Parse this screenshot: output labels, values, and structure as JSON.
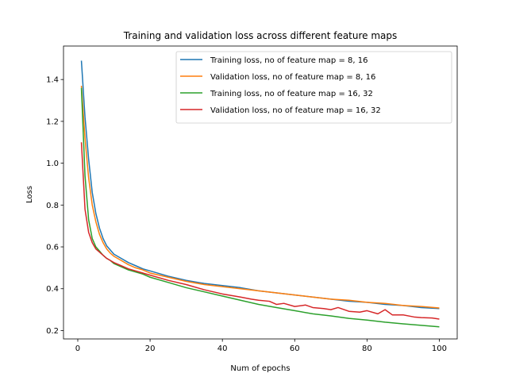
{
  "chart_data": {
    "type": "line",
    "title": "Training and validation loss across different feature maps",
    "xlabel": "Num of epochs",
    "ylabel": "Loss",
    "xlim": [
      -3.95,
      104.95
    ],
    "ylim": [
      0.16,
      1.56
    ],
    "xticks": [
      0,
      20,
      40,
      60,
      80,
      100
    ],
    "yticks": [
      0.2,
      0.4,
      0.6,
      0.8,
      1.0,
      1.2,
      1.4
    ],
    "ytick_labels": [
      "0.2",
      "0.4",
      "0.6",
      "0.8",
      "1.0",
      "1.2",
      "1.4"
    ],
    "grid": false,
    "legend_position": "top-right",
    "series": [
      {
        "name": "Training loss, no of feature map = 8, 16",
        "color": "#1f77b4",
        "x": [
          1,
          2,
          3,
          4,
          5,
          6,
          7,
          8,
          9,
          10,
          12,
          14,
          16,
          18,
          20,
          25,
          30,
          35,
          40,
          45,
          50,
          55,
          60,
          65,
          70,
          75,
          80,
          85,
          90,
          95,
          100
        ],
        "y": [
          1.49,
          1.22,
          1.02,
          0.86,
          0.76,
          0.69,
          0.64,
          0.605,
          0.585,
          0.565,
          0.545,
          0.525,
          0.51,
          0.495,
          0.485,
          0.46,
          0.44,
          0.425,
          0.415,
          0.405,
          0.39,
          0.38,
          0.37,
          0.36,
          0.35,
          0.34,
          0.335,
          0.325,
          0.32,
          0.31,
          0.305
        ]
      },
      {
        "name": "Validation loss, no of feature map = 8, 16",
        "color": "#ff7f0e",
        "x": [
          1,
          2,
          3,
          4,
          5,
          6,
          7,
          8,
          9,
          10,
          12,
          14,
          16,
          18,
          20,
          25,
          30,
          35,
          40,
          45,
          50,
          55,
          60,
          65,
          70,
          75,
          80,
          85,
          90,
          95,
          100
        ],
        "y": [
          1.37,
          1.12,
          0.93,
          0.8,
          0.72,
          0.66,
          0.62,
          0.59,
          0.57,
          0.555,
          0.535,
          0.515,
          0.5,
          0.49,
          0.475,
          0.455,
          0.435,
          0.42,
          0.41,
          0.4,
          0.39,
          0.38,
          0.37,
          0.36,
          0.35,
          0.345,
          0.335,
          0.33,
          0.32,
          0.315,
          0.308
        ]
      },
      {
        "name": "Training loss, no of feature map = 16, 32",
        "color": "#2ca02c",
        "x": [
          1,
          2,
          3,
          4,
          5,
          6,
          7,
          8,
          9,
          10,
          12,
          14,
          16,
          18,
          20,
          25,
          30,
          35,
          40,
          45,
          50,
          55,
          60,
          65,
          70,
          75,
          80,
          85,
          90,
          95,
          100
        ],
        "y": [
          1.36,
          0.94,
          0.73,
          0.64,
          0.6,
          0.58,
          0.56,
          0.545,
          0.535,
          0.52,
          0.505,
          0.49,
          0.48,
          0.47,
          0.455,
          0.43,
          0.405,
          0.385,
          0.365,
          0.345,
          0.325,
          0.31,
          0.295,
          0.28,
          0.27,
          0.258,
          0.25,
          0.24,
          0.232,
          0.225,
          0.218
        ]
      },
      {
        "name": "Validation loss, no of feature map = 16, 32",
        "color": "#d62728",
        "x": [
          1,
          2,
          3,
          4,
          5,
          6,
          7,
          8,
          9,
          10,
          12,
          14,
          16,
          18,
          20,
          25,
          30,
          35,
          40,
          45,
          48,
          50,
          53,
          55,
          57,
          60,
          63,
          65,
          68,
          70,
          72,
          75,
          78,
          80,
          83,
          85,
          87,
          90,
          93,
          95,
          98,
          100
        ],
        "y": [
          1.1,
          0.78,
          0.67,
          0.62,
          0.59,
          0.575,
          0.56,
          0.545,
          0.535,
          0.525,
          0.51,
          0.495,
          0.485,
          0.475,
          0.465,
          0.44,
          0.42,
          0.395,
          0.375,
          0.36,
          0.35,
          0.345,
          0.34,
          0.325,
          0.33,
          0.315,
          0.322,
          0.31,
          0.305,
          0.3,
          0.31,
          0.292,
          0.288,
          0.295,
          0.28,
          0.3,
          0.275,
          0.275,
          0.265,
          0.262,
          0.26,
          0.255
        ]
      }
    ]
  }
}
